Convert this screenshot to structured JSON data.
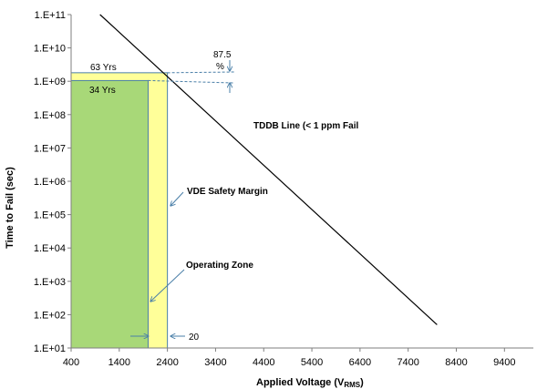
{
  "chart_data": {
    "type": "line",
    "xlabel": "Applied Voltage (V",
    "xlabel_sub": "RMS",
    "xlabel_close": ")",
    "ylabel": "Time to Fail (sec)",
    "x_ticks": [
      400,
      1400,
      2400,
      3400,
      4400,
      5400,
      6400,
      7400,
      8400,
      9400
    ],
    "x_range": [
      400,
      10000
    ],
    "y_scale": "log",
    "y_ticks": [
      "1.E+01",
      "1.E+02",
      "1.E+03",
      "1.E+04",
      "1.E+05",
      "1.E+06",
      "1.E+07",
      "1.E+08",
      "1.E+09",
      "1.E+10",
      "1.E+11"
    ],
    "y_exp_range": [
      1,
      11
    ],
    "grid": false,
    "series": [
      {
        "name": "TDDB Line (< 1 ppm Fail",
        "color": "#000000",
        "points": [
          [
            1000,
            100000000000.0
          ],
          [
            8000,
            50.0
          ]
        ]
      }
    ],
    "regions": [
      {
        "label": "63 Yrs",
        "x": [
          400,
          2400
        ],
        "y": [
          10,
          1800000000.0
        ],
        "color": "#ffff99",
        "edge": "#4a7fa8"
      },
      {
        "label": "34 Yrs",
        "x": [
          400,
          2000
        ],
        "y": [
          10,
          1050000000.0
        ],
        "color": "#a8d878",
        "edge": "#4a7fa8"
      }
    ],
    "annotations": {
      "percent_value": "87.5",
      "percent_sign": "%",
      "vde_margin": "VDE Safety Margin",
      "operating_zone": "Operating  Zone",
      "margin_value": "20"
    },
    "colors": {
      "arrow": "#4a7fa8",
      "axis": "#7f7f7f"
    }
  }
}
